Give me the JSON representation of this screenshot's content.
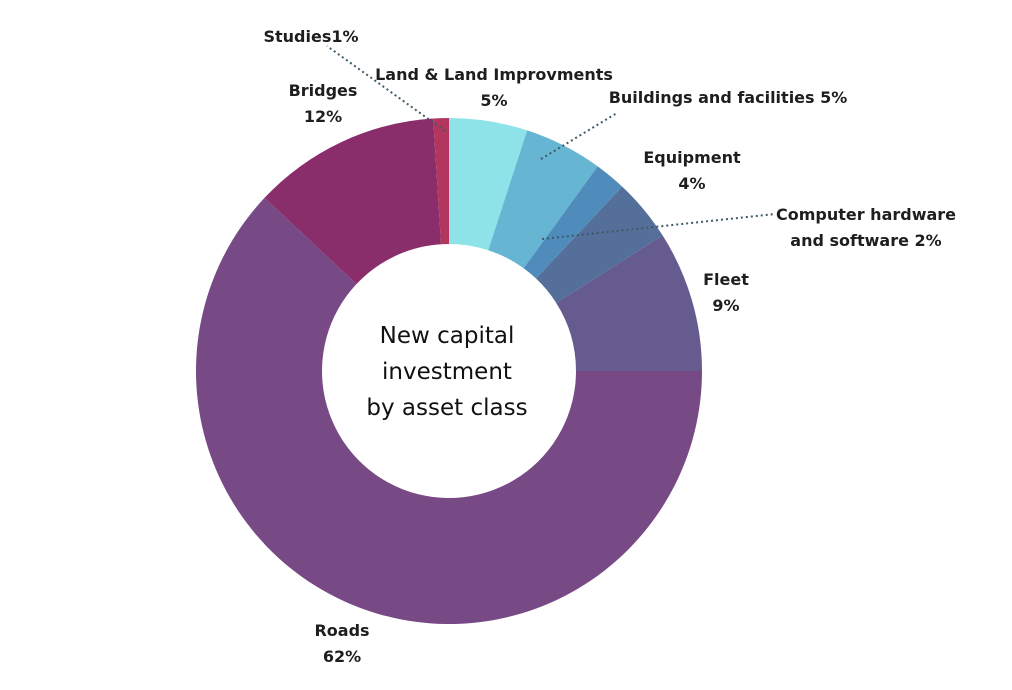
{
  "chart_data": {
    "type": "pie",
    "donut": true,
    "center_title_lines": [
      "New capital",
      "investment",
      "by asset class"
    ],
    "slices": [
      {
        "name": "Land & Land Improvments",
        "value": 5,
        "label_lines": [
          "Land & Land Improvments",
          "5%"
        ],
        "color": "#8de3e8"
      },
      {
        "name": "Buildings and facilities",
        "value": 5,
        "label_lines": [
          "Buildings and facilities 5%"
        ],
        "color": "#66b5d3"
      },
      {
        "name": "Computer hardware and software",
        "value": 2,
        "label_lines": [
          "Computer hardware",
          "and software 2%"
        ],
        "color": "#4f8cbc"
      },
      {
        "name": "Equipment",
        "value": 4,
        "label_lines": [
          "Equipment",
          "4%"
        ],
        "color": "#54709a"
      },
      {
        "name": "Fleet",
        "value": 9,
        "label_lines": [
          "Fleet",
          "9%"
        ],
        "color": "#655b8e"
      },
      {
        "name": "Roads",
        "value": 62,
        "label_lines": [
          "Roads",
          "62%"
        ],
        "color": "#774a86"
      },
      {
        "name": "Bridges",
        "value": 12,
        "label_lines": [
          "Bridges",
          "12%"
        ],
        "color": "#892d6b"
      },
      {
        "name": "Studies",
        "value": 1,
        "label_lines": [
          "Studies1%"
        ],
        "color": "#b2365e"
      }
    ]
  }
}
